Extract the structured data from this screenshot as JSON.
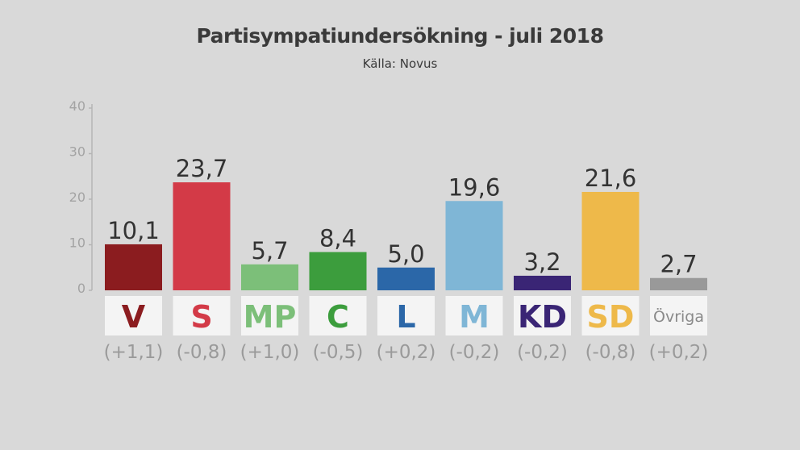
{
  "title": "Partisympatiundersökning - juli 2018",
  "subtitle": "Källa: Novus",
  "chart_data": {
    "type": "bar",
    "title": "Partisympatiundersökning - juli 2018",
    "subtitle": "Källa: Novus",
    "ylim": [
      0,
      40
    ],
    "yticks": [
      0,
      10,
      20,
      30,
      40
    ],
    "grid": false,
    "categories": [
      "V",
      "S",
      "MP",
      "C",
      "L",
      "M",
      "KD",
      "SD",
      "Övriga"
    ],
    "values": [
      10.1,
      23.7,
      5.7,
      8.4,
      5.0,
      19.6,
      3.2,
      21.6,
      2.7
    ],
    "value_labels": [
      "10,1",
      "23,7",
      "5,7",
      "8,4",
      "5,0",
      "19,6",
      "3,2",
      "21,6",
      "2,7"
    ],
    "changes": [
      "(+1,1)",
      "(-0,8)",
      "(+1,0)",
      "(-0,5)",
      "(+0,2)",
      "(-0,2)",
      "(-0,2)",
      "(-0,8)",
      "(+0,2)"
    ],
    "colors": [
      "#8b1c1f",
      "#d33a47",
      "#7cbf79",
      "#3c9d3d",
      "#2b67a8",
      "#7fb6d6",
      "#3a2575",
      "#eeb94a",
      "#999999"
    ]
  }
}
